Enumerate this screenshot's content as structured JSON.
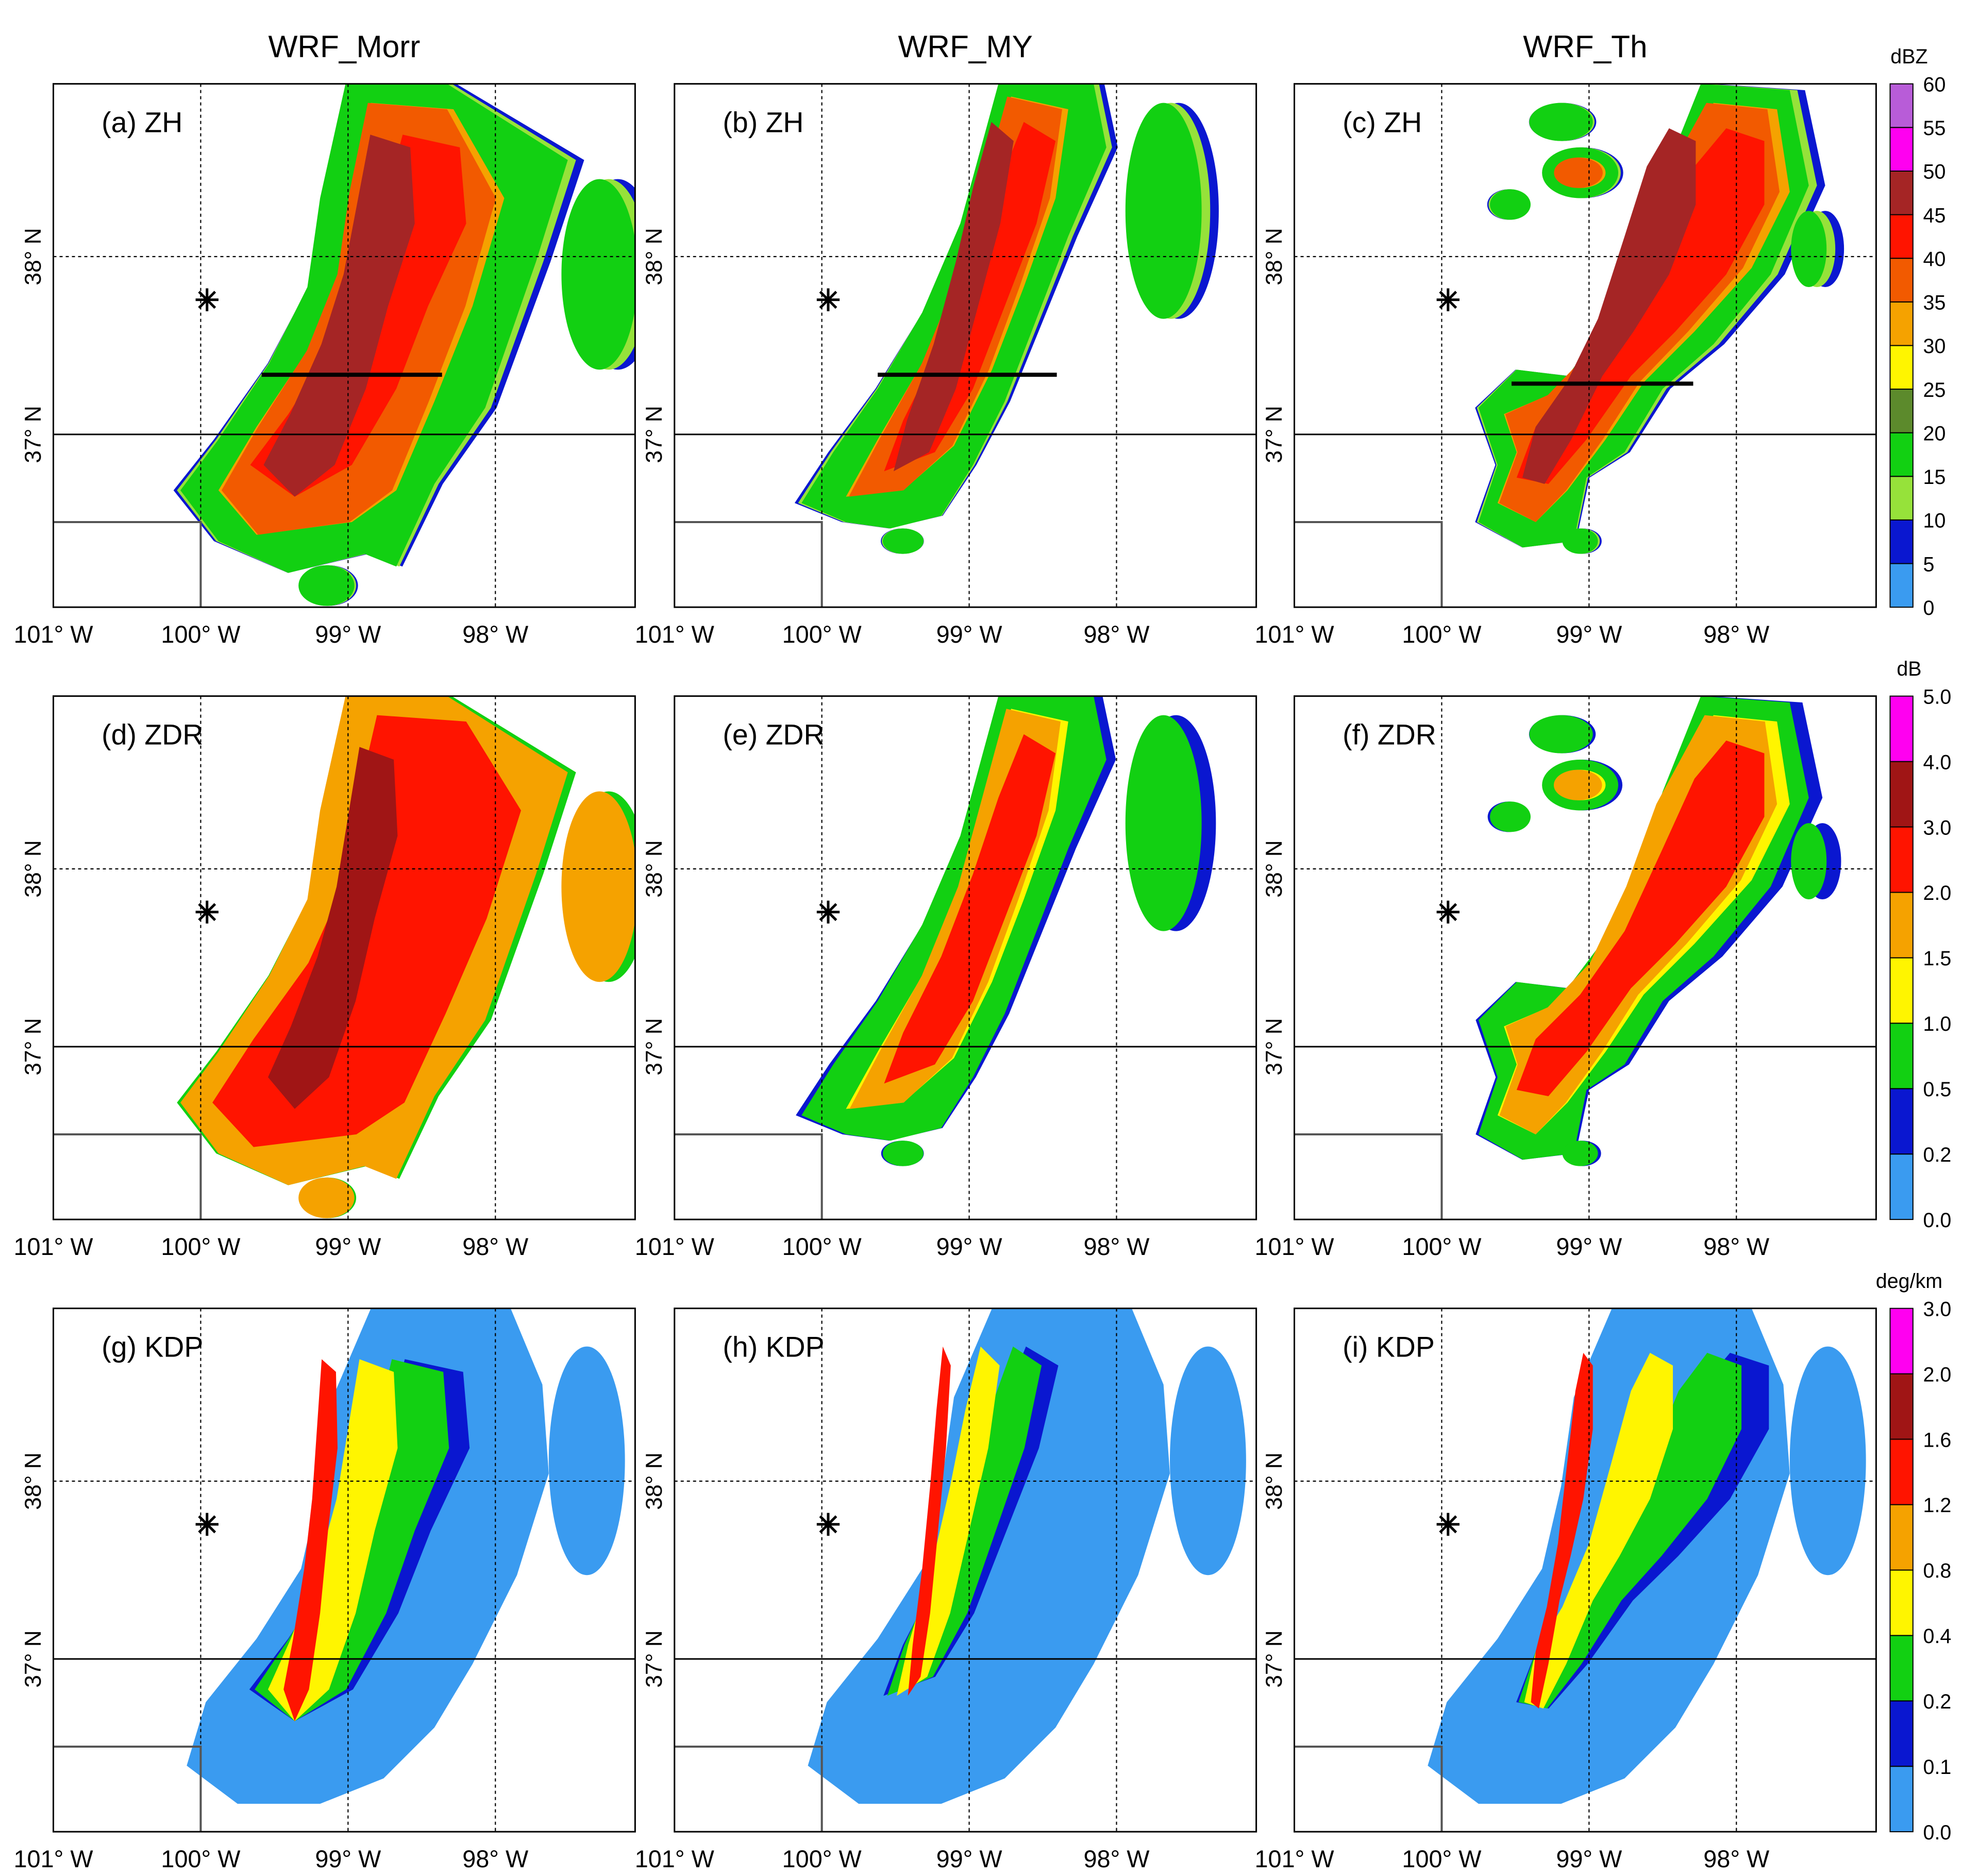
{
  "column_titles": [
    "WRF_Morr",
    "WRF_MY",
    "WRF_Th"
  ],
  "panel_labels": [
    [
      "(a) ZH",
      "(b) ZH",
      "(c) ZH"
    ],
    [
      "(d) ZDR",
      "(e) ZDR",
      "(f) ZDR"
    ],
    [
      "(g) KDP",
      "(h) KDP",
      "(i) KDP"
    ]
  ],
  "lon_labels": [
    "101° W",
    "100° W",
    "99° W",
    "98° W"
  ],
  "lat_labels": [
    "38° N",
    "37° N"
  ],
  "colorbars": [
    {
      "unit": "dBZ",
      "ticks": [
        "0",
        "5",
        "10",
        "15",
        "20",
        "25",
        "30",
        "35",
        "40",
        "45",
        "50",
        "55",
        "60"
      ],
      "colors": [
        "#3a9bf0",
        "#0a17d0",
        "#96e23a",
        "#12d012",
        "#5c8a2c",
        "#fff500",
        "#f5a200",
        "#f25a00",
        "#ff1400",
        "#a52525",
        "#ff00f0",
        "#b85cd8"
      ]
    },
    {
      "unit": "dB",
      "ticks": [
        "0.0",
        "0.2",
        "0.5",
        "1.0",
        "1.5",
        "2.0",
        "3.0",
        "4.0",
        "5.0"
      ],
      "colors": [
        "#3a9bf0",
        "#0a17d0",
        "#12d012",
        "#fff500",
        "#f5a200",
        "#ff1400",
        "#a01515",
        "#ff00f0"
      ]
    },
    {
      "unit": "deg/km",
      "ticks": [
        "0.0",
        "0.1",
        "0.2",
        "0.4",
        "0.8",
        "1.2",
        "1.6",
        "2.0",
        "3.0"
      ],
      "colors": [
        "#3a9bf0",
        "#0a17d0",
        "#12d012",
        "#fff500",
        "#f5a200",
        "#ff1400",
        "#a01515",
        "#ff00f0"
      ]
    }
  ]
}
